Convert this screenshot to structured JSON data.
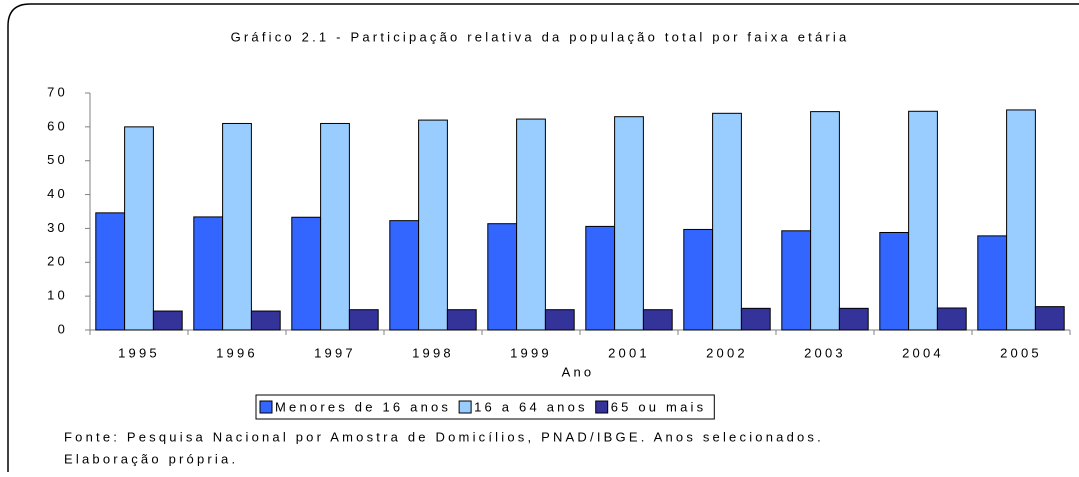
{
  "chart_data": {
    "type": "bar",
    "title": "Gráfico 2.1 - Participação relativa da população total por faixa etária",
    "x_label": "Ano",
    "categories": [
      "1995",
      "1996",
      "1997",
      "1998",
      "1999",
      "2001",
      "2002",
      "2003",
      "2004",
      "2005"
    ],
    "series": [
      {
        "name": "Menores de 16 anos",
        "color": "#3366ff",
        "values": [
          34.6,
          33.4,
          33.3,
          32.3,
          31.4,
          30.6,
          29.7,
          29.3,
          28.8,
          27.8
        ]
      },
      {
        "name": "16 a 64 anos",
        "color": "#99ccff",
        "values": [
          60.0,
          61.0,
          61.0,
          62.0,
          62.3,
          63.0,
          64.0,
          64.5,
          64.6,
          65.0
        ]
      },
      {
        "name": "65 ou mais",
        "color": "#333399",
        "values": [
          5.6,
          5.6,
          6.0,
          6.0,
          6.0,
          6.0,
          6.4,
          6.4,
          6.5,
          6.9
        ]
      }
    ],
    "ylim": [
      0,
      70
    ],
    "yticks": [
      0,
      10,
      20,
      30,
      40,
      50,
      60,
      70
    ],
    "grid": false,
    "legend": "bottom",
    "source": [
      "Fonte: Pesquisa Nacional por Amostra de Domicílios, PNAD/IBGE. Anos selecionados.",
      "Elaboração própria."
    ]
  }
}
